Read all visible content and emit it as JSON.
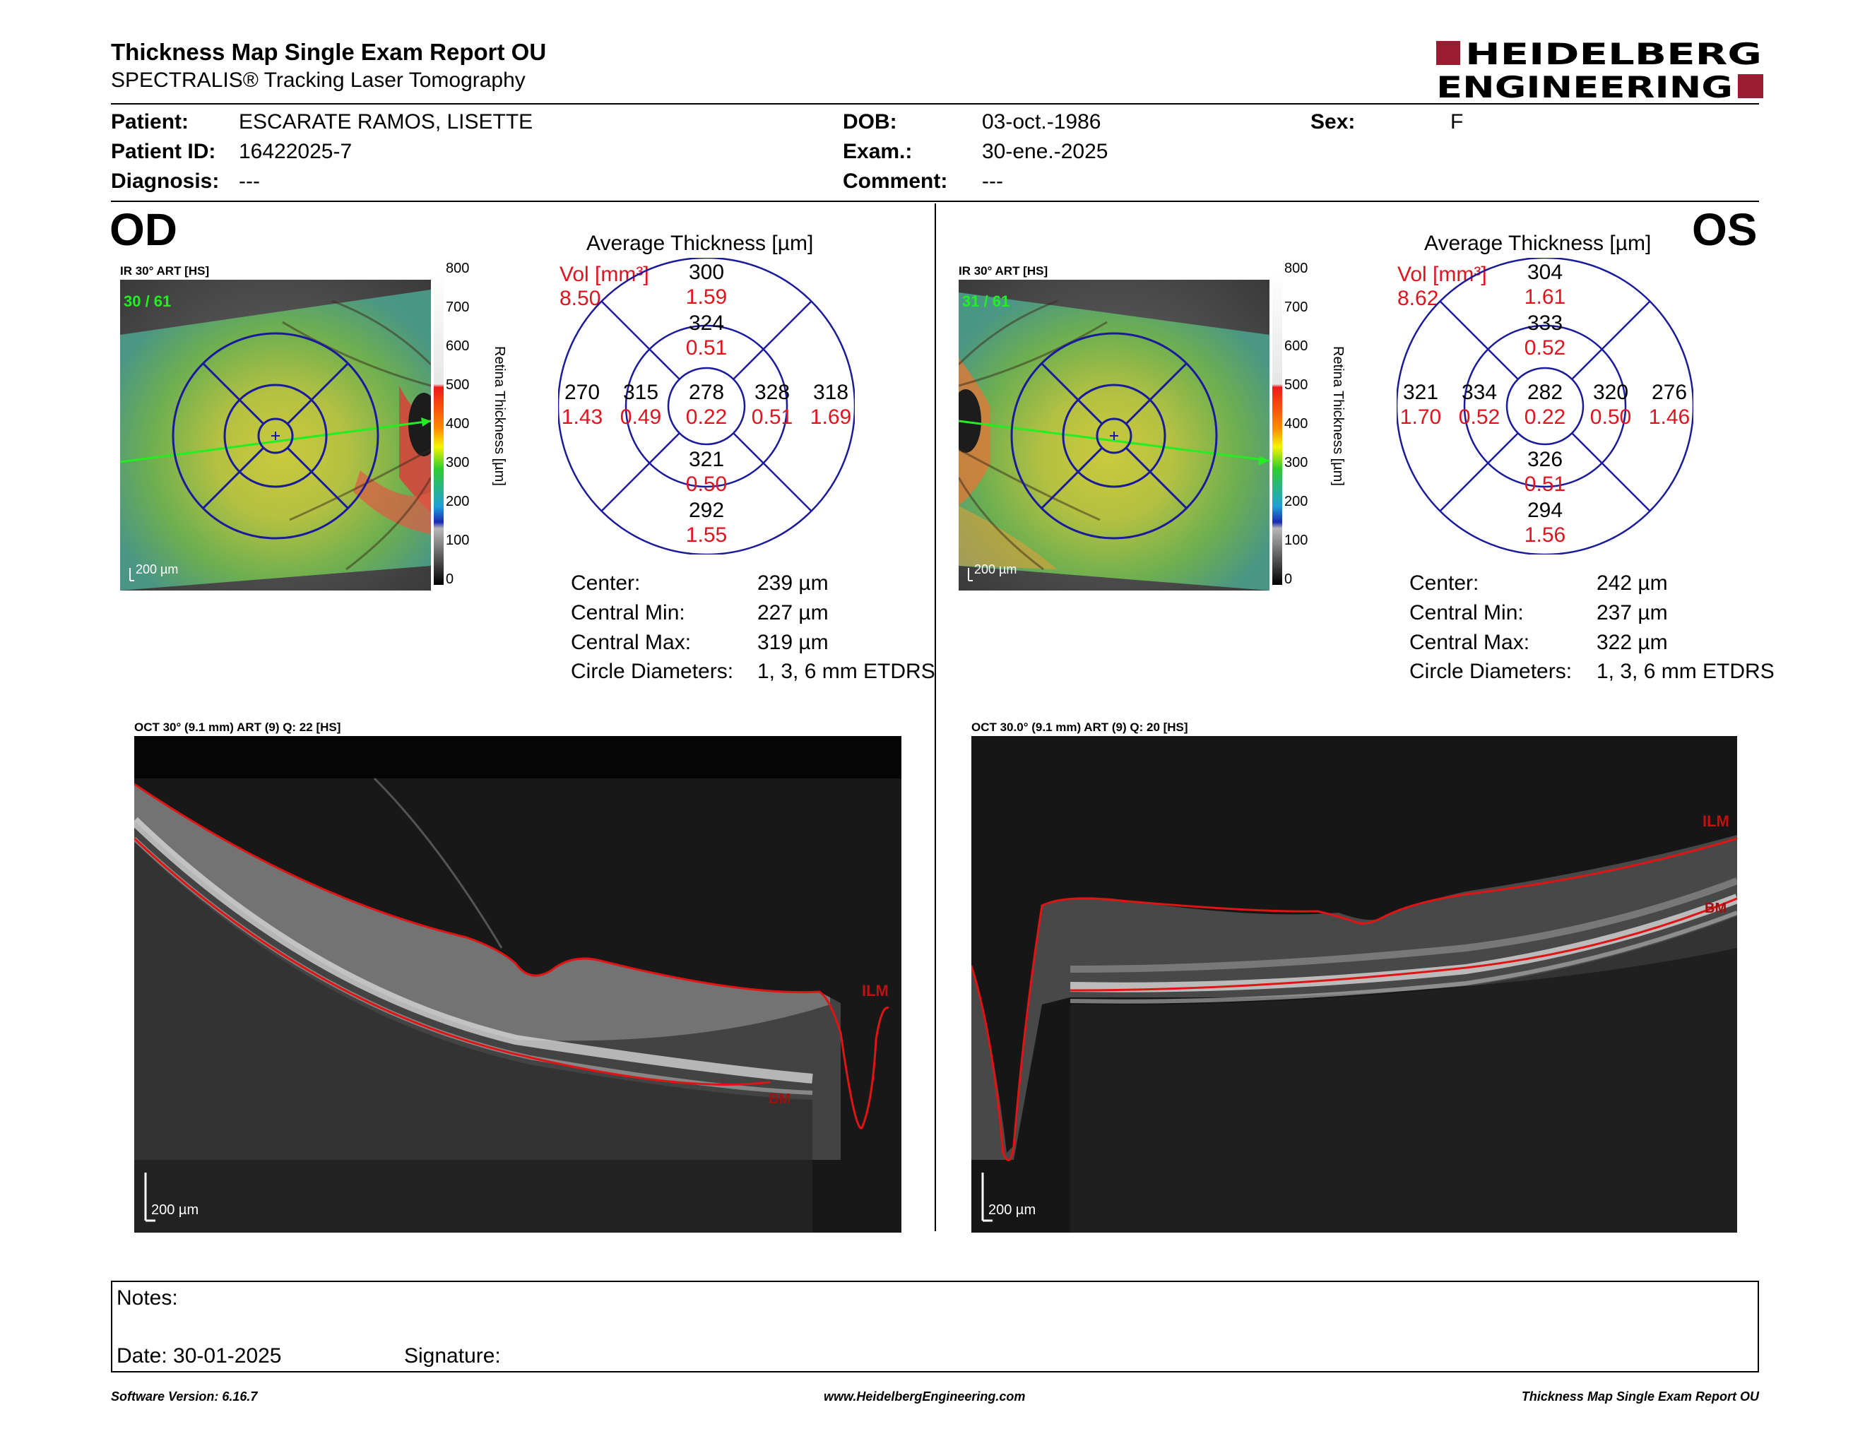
{
  "report": {
    "title": "Thickness Map Single Exam Report OU",
    "subtitle": "SPECTRALIS® Tracking Laser Tomography",
    "brand_line1": "HEIDELBERG",
    "brand_line2": "ENGINEERING"
  },
  "patient": {
    "patient_label": "Patient:",
    "patient_value": "ESCARATE RAMOS, LISETTE",
    "id_label": "Patient ID:",
    "id_value": "16422025-7",
    "diagnosis_label": "Diagnosis:",
    "diagnosis_value": "---",
    "dob_label": "DOB:",
    "dob_value": "03-oct.-1986",
    "exam_label": "Exam.:",
    "exam_value": "30-ene.-2025",
    "comment_label": "Comment:",
    "comment_value": "---",
    "sex_label": "Sex:",
    "sex_value": "F"
  },
  "od": {
    "eye": "OD",
    "ir_label": "IR 30° ART [HS]",
    "ir_count": "30 / 61",
    "scale_bar": "200 µm",
    "legend_ticks": [
      "800",
      "700",
      "600",
      "500",
      "400",
      "300",
      "200",
      "100",
      "0"
    ],
    "legend_title": "Retina Thickness [µm]",
    "avg_title": "Average Thickness [µm]",
    "vol_label": "Vol [mm³]",
    "vol_value": "8.50",
    "etdrs": {
      "c_t": "278",
      "c_v": "0.22",
      "in_t": "324",
      "in_v": "0.51",
      "is_t": "321",
      "is_v": "0.50",
      "ii_t": "315",
      "ii_v": "0.49",
      "ir_t": "328",
      "ir_v": "0.51",
      "on_t": "300",
      "on_v": "1.59",
      "os_t": "292",
      "os_v": "1.55",
      "ol_t": "270",
      "ol_v": "1.43",
      "or_t": "318",
      "or_v": "1.69"
    },
    "stats": {
      "center_label": "Center:",
      "center_value": "239 µm",
      "min_label": "Central Min:",
      "min_value": "227 µm",
      "max_label": "Central Max:",
      "max_value": "319 µm",
      "diam_label": "Circle Diameters:",
      "diam_value": "1, 3, 6 mm ETDRS"
    },
    "oct_label": "OCT 30° (9.1 mm) ART (9) Q: 22 [HS]",
    "ilm": "ILM",
    "bm": "BM",
    "oct_scale": "200 µm"
  },
  "os": {
    "eye": "OS",
    "ir_label": "IR 30° ART [HS]",
    "ir_count": "31 / 61",
    "scale_bar": "200 µm",
    "legend_ticks": [
      "800",
      "700",
      "600",
      "500",
      "400",
      "300",
      "200",
      "100",
      "0"
    ],
    "legend_title": "Retina Thickness [µm]",
    "avg_title": "Average Thickness [µm]",
    "vol_label": "Vol [mm³]",
    "vol_value": "8.62",
    "etdrs": {
      "c_t": "282",
      "c_v": "0.22",
      "in_t": "333",
      "in_v": "0.52",
      "is_t": "326",
      "is_v": "0.51",
      "ii_t": "334",
      "ii_v": "0.52",
      "ir_t": "320",
      "ir_v": "0.50",
      "on_t": "304",
      "on_v": "1.61",
      "os_t": "294",
      "os_v": "1.56",
      "ol_t": "321",
      "ol_v": "1.70",
      "or_t": "276",
      "or_v": "1.46"
    },
    "stats": {
      "center_label": "Center:",
      "center_value": "242 µm",
      "min_label": "Central Min:",
      "min_value": "237 µm",
      "max_label": "Central Max:",
      "max_value": "322 µm",
      "diam_label": "Circle Diameters:",
      "diam_value": "1, 3, 6 mm ETDRS"
    },
    "oct_label": "OCT 30.0° (9.1 mm) ART (9) Q: 20 [HS]",
    "ilm": "ILM",
    "bm": "BM",
    "oct_scale": "200 µm"
  },
  "notes": {
    "notes_label": "Notes:",
    "date_label": "Date: 30-01-2025",
    "signature_label": "Signature:"
  },
  "footer": {
    "software": "Software Version: 6.16.7",
    "website": "www.HeidelbergEngineering.com",
    "report_name": "Thickness Map Single Exam Report OU"
  },
  "colors": {
    "brand_red": "#9b1b30",
    "etdrs_blue": "#1a1a9c",
    "value_red": "#e0141e",
    "segment_red": "#d11414",
    "scan_green": "#22ee22"
  }
}
